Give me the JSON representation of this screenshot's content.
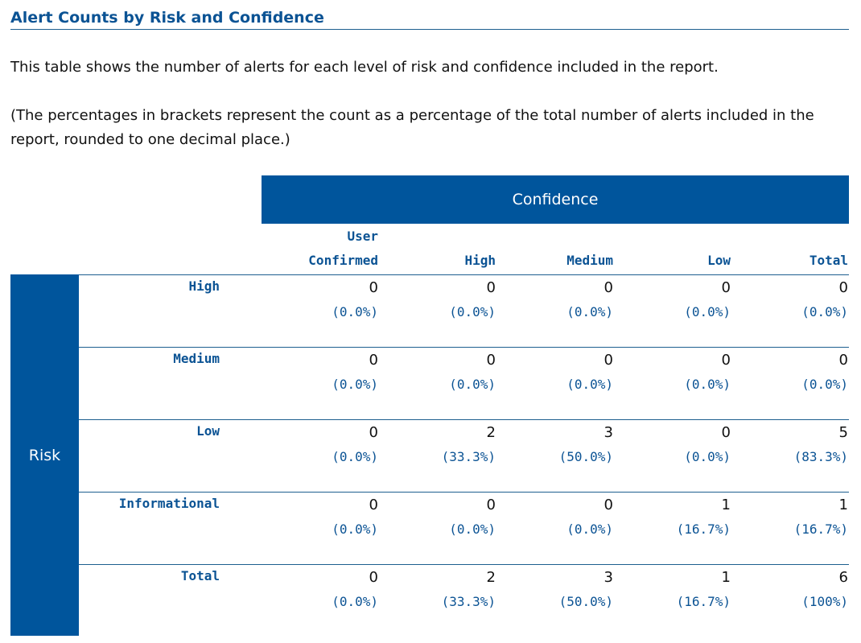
{
  "heading": "Alert Counts by Risk and Confidence",
  "description": "This table shows the number of alerts for each level of risk and confidence included in the report.",
  "note": "(The percentages in brackets represent the count as a percentage of the total number of alerts included in the report, rounded to one decimal place.)",
  "table": {
    "confidence_label": "Confidence",
    "risk_label": "Risk",
    "columns": [
      {
        "line1": "User",
        "line2": "Confirmed"
      },
      {
        "line1": "",
        "line2": "High"
      },
      {
        "line1": "",
        "line2": "Medium"
      },
      {
        "line1": "",
        "line2": "Low"
      },
      {
        "line1": "",
        "line2": "Total"
      }
    ],
    "rows": [
      {
        "label": "High",
        "cells": [
          {
            "count": "0",
            "pct": "(0.0%)"
          },
          {
            "count": "0",
            "pct": "(0.0%)"
          },
          {
            "count": "0",
            "pct": "(0.0%)"
          },
          {
            "count": "0",
            "pct": "(0.0%)"
          },
          {
            "count": "0",
            "pct": "(0.0%)"
          }
        ]
      },
      {
        "label": "Medium",
        "cells": [
          {
            "count": "0",
            "pct": "(0.0%)"
          },
          {
            "count": "0",
            "pct": "(0.0%)"
          },
          {
            "count": "0",
            "pct": "(0.0%)"
          },
          {
            "count": "0",
            "pct": "(0.0%)"
          },
          {
            "count": "0",
            "pct": "(0.0%)"
          }
        ]
      },
      {
        "label": "Low",
        "cells": [
          {
            "count": "0",
            "pct": "(0.0%)"
          },
          {
            "count": "2",
            "pct": "(33.3%)"
          },
          {
            "count": "3",
            "pct": "(50.0%)"
          },
          {
            "count": "0",
            "pct": "(0.0%)"
          },
          {
            "count": "5",
            "pct": "(83.3%)"
          }
        ]
      },
      {
        "label": "Informational",
        "cells": [
          {
            "count": "0",
            "pct": "(0.0%)"
          },
          {
            "count": "0",
            "pct": "(0.0%)"
          },
          {
            "count": "0",
            "pct": "(0.0%)"
          },
          {
            "count": "1",
            "pct": "(16.7%)"
          },
          {
            "count": "1",
            "pct": "(16.7%)"
          }
        ]
      },
      {
        "label": "Total",
        "cells": [
          {
            "count": "0",
            "pct": "(0.0%)"
          },
          {
            "count": "2",
            "pct": "(33.3%)"
          },
          {
            "count": "3",
            "pct": "(50.0%)"
          },
          {
            "count": "1",
            "pct": "(16.7%)"
          },
          {
            "count": "6",
            "pct": "(100%)"
          }
        ]
      }
    ]
  }
}
